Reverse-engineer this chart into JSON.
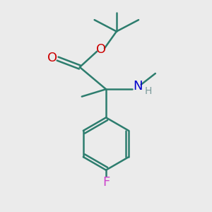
{
  "background_color": "#ebebeb",
  "bond_color": "#2d7d6e",
  "O_color": "#cc0000",
  "N_color": "#0000cc",
  "F_color": "#cc44cc",
  "H_color": "#7a9a9a",
  "line_width": 1.8,
  "figsize": [
    3.0,
    3.0
  ],
  "dpi": 100,
  "xlim": [
    0,
    10
  ],
  "ylim": [
    0,
    10
  ]
}
